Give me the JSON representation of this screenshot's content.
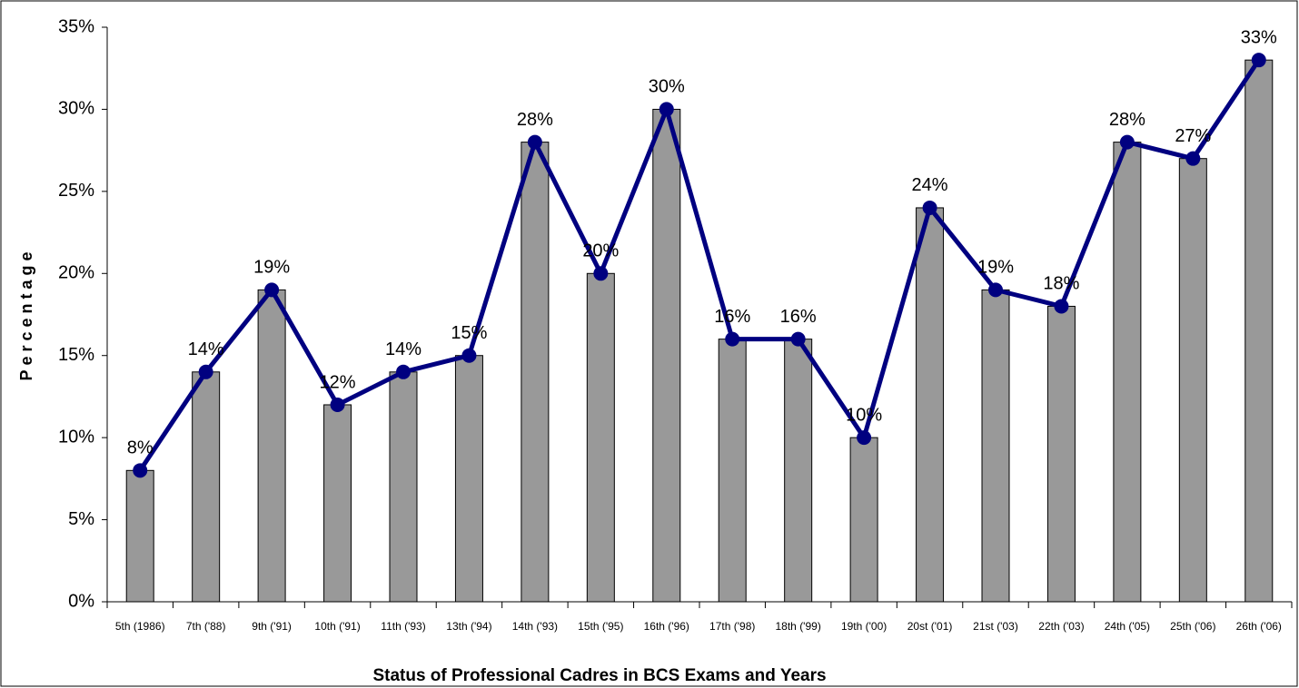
{
  "chart_data": {
    "type": "bar",
    "x_label": "Status of Professional Cadres in BCS Exams and Years",
    "y_label": "Percentage",
    "categories": [
      "5th (1986)",
      "7th ('88)",
      "9th ('91)",
      "10th ('91)",
      "11th ('93)",
      "13th ('94)",
      "14th ('93)",
      "15th ('95)",
      "16th ('96)",
      "17th ('98)",
      "18th ('99)",
      "19th ('00)",
      "20st ('01)",
      "21st ('03)",
      "22th ('03)",
      "24th ('05)",
      "25th ('06)",
      "26th ('06)"
    ],
    "series": [
      {
        "type": "bar",
        "color": "#999999",
        "values": [
          8,
          14,
          19,
          12,
          14,
          15,
          28,
          20,
          30,
          16,
          16,
          10,
          24,
          19,
          18,
          28,
          27,
          33
        ]
      },
      {
        "type": "line",
        "color": "#000080",
        "values": [
          8,
          14,
          19,
          12,
          14,
          15,
          28,
          20,
          30,
          16,
          16,
          10,
          24,
          19,
          18,
          28,
          27,
          33
        ],
        "value_labels": [
          "8%",
          "14%",
          "19%",
          "12%",
          "14%",
          "15%",
          "28%",
          "20%",
          "30%",
          "16%",
          "16%",
          "10%",
          "24%",
          "19%",
          "18%",
          "28%",
          "27%",
          "33%"
        ]
      }
    ],
    "ylim": [
      0,
      35
    ],
    "yticks": [
      {
        "value": 0,
        "label": "0%"
      },
      {
        "value": 5,
        "label": "5%"
      },
      {
        "value": 10,
        "label": "10%"
      },
      {
        "value": 15,
        "label": "15%"
      },
      {
        "value": 20,
        "label": "20%"
      },
      {
        "value": 25,
        "label": "25%"
      },
      {
        "value": 30,
        "label": "30%"
      },
      {
        "value": 35,
        "label": "35%"
      }
    ],
    "grid": false
  }
}
